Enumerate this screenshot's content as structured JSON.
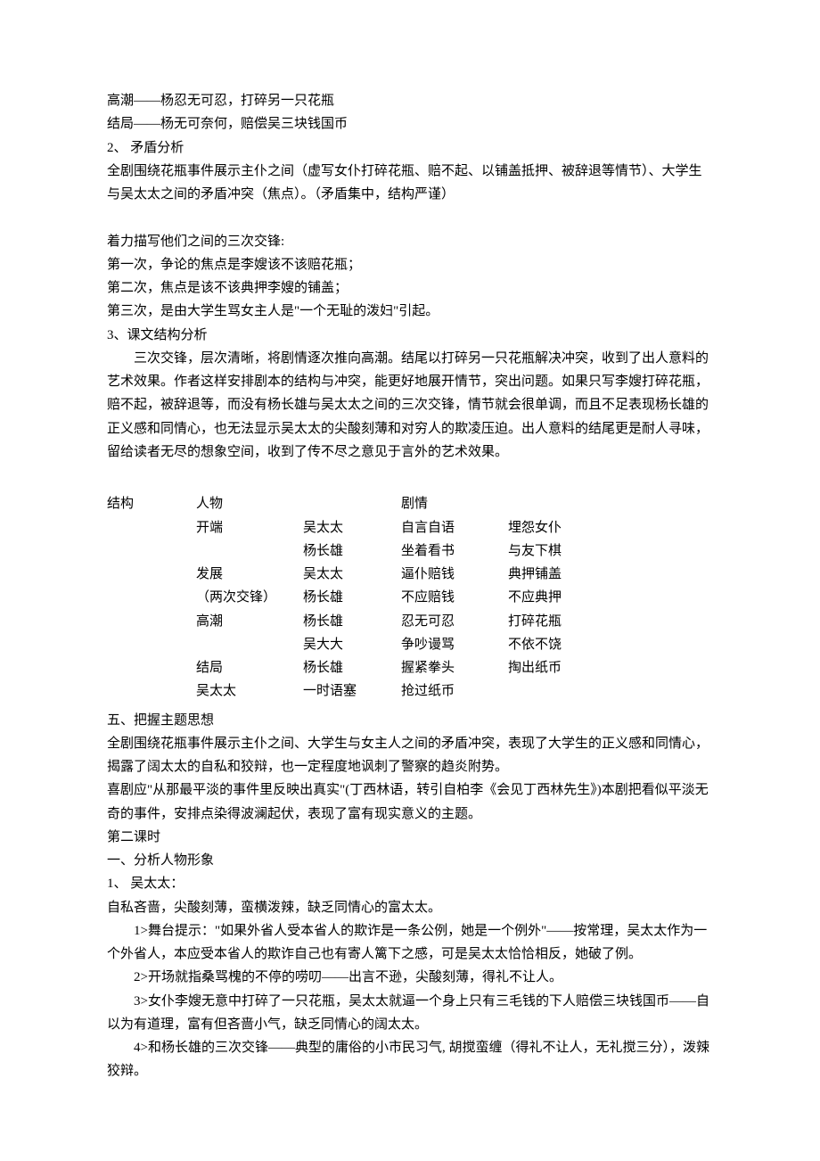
{
  "colors": {
    "text": "#000000",
    "background": "#ffffff"
  },
  "typography": {
    "font_family": "SimSun",
    "font_size_pt": 11,
    "line_height": 1.75
  },
  "intro": {
    "l1": "高潮——杨忍无可忍，打碎另一只花瓶",
    "l2": "结局——杨无可奈何，赔偿吴三块钱国币",
    "l3": "2、 矛盾分析",
    "l4": "全剧围绕花瓶事件展示主仆之间（虚写女仆打碎花瓶、赔不起、以铺盖抵押、被辞退等情节）、大学生与吴太太之间的矛盾冲突（焦点）。（矛盾集中，结构严谨）",
    "l5": "着力描写他们之间的三次交锋:",
    "l6": "第一次，争论的焦点是李嫂该不该赔花瓶；",
    "l7": "第二次，焦点是该不该典押李嫂的铺盖；",
    "l8": "第三次，是由大学生骂女主人是\"一个无耻的泼妇\"引起。",
    "l9": "3、课文结构分析",
    "l10": "三次交锋，层次清晰，将剧情逐次推向高潮。结尾以打碎另一只花瓶解决冲突，收到了出人意料的艺术效果。作者这样安排剧本的结构与冲突，能更好地展开情节，突出问题。如果只写李嫂打碎花瓶，赔不起，被辞退等，而没有杨长雄与吴太太之间的三次交锋，情节就会很单调，而且不足表现杨长雄的正义感和同情心，也无法显示吴太太的尖酸刻薄和对穷人的欺凌压迫。出人意料的结尾更是耐人寻味，留给读者无尽的想象空间，收到了传不尽之意见于言外的艺术效果。"
  },
  "table": {
    "header": {
      "c1": "结构",
      "c2": "人物",
      "c3": "",
      "c4": "剧情",
      "c5": ""
    },
    "rows": [
      {
        "c1": "",
        "c2": "开端",
        "c3": "吴太太",
        "c4": "自言自语",
        "c5": "埋怨女仆"
      },
      {
        "c1": "",
        "c2": "",
        "c3": "杨长雄",
        "c4": "坐着看书",
        "c5": "与友下棋"
      },
      {
        "c1": "",
        "c2": "发展",
        "c3": "吴太太",
        "c4": "逼仆赔钱",
        "c5": "典押铺盖"
      },
      {
        "c1": "",
        "c2": "（两次交锋）",
        "c3": "杨长雄",
        "c4": "不应赔钱",
        "c5": "不应典押"
      },
      {
        "c1": "",
        "c2": "高潮",
        "c3": "杨长雄",
        "c4": "忍无可忍",
        "c5": "打碎花瓶"
      },
      {
        "c1": "",
        "c2": "",
        "c3": "吴大大",
        "c4": "争吵谩骂",
        "c5": "不依不饶"
      },
      {
        "c1": "",
        "c2": "结局",
        "c3": "杨长雄",
        "c4": "握紧拳头",
        "c5": "掏出纸币"
      },
      {
        "c1": "",
        "c2": "吴太太",
        "c3": "一时语塞",
        "c4": "抢过纸币",
        "c5": ""
      }
    ]
  },
  "section5": {
    "title": "五、把握主题思想",
    "p1": "全剧围绕花瓶事件展示主仆之间、大学生与女主人之间的矛盾冲突，表现了大学生的正义感和同情心，揭露了阔太太的自私和狡辩，也一定程度地讽刺了警察的趋炎附势。",
    "p2": "喜剧应\"从那最平淡的事件里反映出真实\"(丁西林语，转引自柏李《会见丁西林先生》)本剧把看似平淡无奇的事件，安排点染得波澜起伏，表现了富有现实意义的主题。"
  },
  "lesson2": {
    "title": "第二课时",
    "s1_title": "一、分析人物形象",
    "wu_title": "1、 吴太太：",
    "wu_desc": "自私吝啬，尖酸刻薄，蛮横泼辣，缺乏同情心的富太太。",
    "wu1": "1>舞台提示：\"如果外省人受本省人的欺诈是一条公例，她是一个例外\"——按常理，吴太太作为一个外省人，本应受本省人的欺诈自己也有寄人篱下之感，可是吴太太恰恰相反，她破了例。",
    "wu2": "2>开场就指桑骂槐的不停的唠叨——出言不逊，尖酸刻薄，得礼不让人。",
    "wu3": "3>女仆李嫂无意中打碎了一只花瓶，吴太太就逼一个身上只有三毛钱的下人赔偿三块钱国币——自以为有道理，富有但吝啬小气，缺乏同情心的阔太太。",
    "wu4": "4>和杨长雄的三次交锋——典型的庸俗的小市民习气, 胡搅蛮缠（得礼不让人，无礼搅三分），泼辣狡辩。"
  }
}
